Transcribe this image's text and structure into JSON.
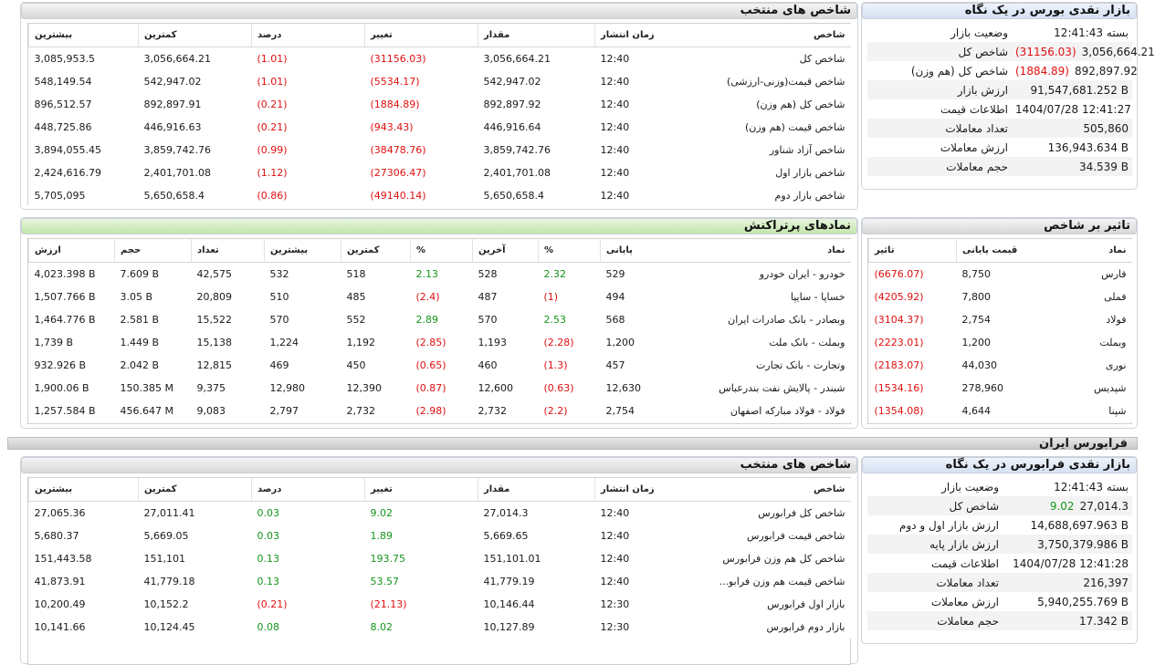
{
  "colors": {
    "negative": "#e01010",
    "positive": "#13961b",
    "header_blue": "#d5e1f2",
    "header_green": "#c4e6ad"
  },
  "bourse_glance": {
    "title": "بازار نقدی بورس در یک نگاه",
    "rows": [
      {
        "key": "وضعیت بازار",
        "value": "بسته 12:41:43"
      },
      {
        "key": "شاخص کل",
        "value": "3,056,664.21",
        "change": "(31156.03)"
      },
      {
        "key": "شاخص کل (هم وزن)",
        "value": "892,897.92",
        "change": "(1884.89)"
      },
      {
        "key": "ارزش بازار",
        "value": "91,547,681.252 B"
      },
      {
        "key": "اطلاعات قیمت",
        "value": "1404/07/28 12:41:27"
      },
      {
        "key": "تعداد معاملات",
        "value": "505,860"
      },
      {
        "key": "ارزش معاملات",
        "value": "136,943.634 B"
      },
      {
        "key": "حجم معاملات",
        "value": "34.539 B"
      }
    ]
  },
  "bourse_indices": {
    "title": "شاخص های منتخب",
    "headers": [
      "شاخص",
      "زمان انتشار",
      "مقدار",
      "تغییر",
      "درصد",
      "کمترین",
      "بیشترین"
    ],
    "rows": [
      [
        "شاخص کل",
        "12:40",
        "3,056,664.21",
        "(31156.03)",
        "(1.01)",
        "3,056,664.21",
        "3,085,953.5"
      ],
      [
        "شاخص قیمت(وزنی-ارزشی)",
        "12:40",
        "542,947.02",
        "(5534.17)",
        "(1.01)",
        "542,947.02",
        "548,149.54"
      ],
      [
        "شاخص کل (هم وزن)",
        "12:40",
        "892,897.92",
        "(1884.89)",
        "(0.21)",
        "892,897.91",
        "896,512.57"
      ],
      [
        "شاخص قیمت (هم وزن)",
        "12:40",
        "446,916.64",
        "(943.43)",
        "(0.21)",
        "446,916.63",
        "448,725.86"
      ],
      [
        "شاخص آزاد شناور",
        "12:40",
        "3,859,742.76",
        "(38478.76)",
        "(0.99)",
        "3,859,742.76",
        "3,894,055.45"
      ],
      [
        "شاخص بازار اول",
        "12:40",
        "2,401,701.08",
        "(27306.47)",
        "(1.12)",
        "2,401,701.08",
        "2,424,616.79"
      ],
      [
        "شاخص بازار دوم",
        "12:40",
        "5,650,658.4",
        "(49140.14)",
        "(0.86)",
        "5,650,658.4",
        "5,705,095"
      ]
    ]
  },
  "index_impact": {
    "title": "تاثیر بر شاخص",
    "headers": [
      "نماد",
      "قیمت پایانی",
      "تاثیر"
    ],
    "rows": [
      [
        "فارس",
        "8,750",
        "(6676.07)"
      ],
      [
        "فملی",
        "7,800",
        "(4205.92)"
      ],
      [
        "فولاد",
        "2,754",
        "(3104.37)"
      ],
      [
        "وبملت",
        "1,200",
        "(2223.01)"
      ],
      [
        "نوری",
        "44,030",
        "(2183.07)"
      ],
      [
        "شپدیس",
        "278,960",
        "(1534.16)"
      ],
      [
        "شپنا",
        "4,644",
        "(1354.08)"
      ]
    ]
  },
  "most_traded": {
    "title": "نمادهای پرتراکنش",
    "headers": [
      "نماد",
      "پایانی",
      "%",
      "آخرین",
      "%",
      "کمترین",
      "بیشترین",
      "تعداد",
      "حجم",
      "ارزش"
    ],
    "rows": [
      [
        "خودرو - ایران خودرو",
        "529",
        "2.32",
        "528",
        "2.13",
        "518",
        "532",
        "42,575",
        "7.609 B",
        "4,023.398 B"
      ],
      [
        "خساپا - سایپا",
        "494",
        "(1)",
        "487",
        "(2.4)",
        "485",
        "510",
        "20,809",
        "3.05 B",
        "1,507.766 B"
      ],
      [
        "وبصادر - بانک صادرات ایران",
        "568",
        "2.53",
        "570",
        "2.89",
        "552",
        "570",
        "15,522",
        "2.581 B",
        "1,464.776 B"
      ],
      [
        "وبملت - بانک ملت",
        "1,200",
        "(2.28)",
        "1,193",
        "(2.85)",
        "1,192",
        "1,224",
        "15,138",
        "1.449 B",
        "1,739 B"
      ],
      [
        "وتجارت - بانک تجارت",
        "457",
        "(1.3)",
        "460",
        "(0.65)",
        "450",
        "469",
        "12,815",
        "2.042 B",
        "932.926 B"
      ],
      [
        "شبندر - پالایش نفت بندرعباس",
        "12,630",
        "(0.63)",
        "12,600",
        "(0.87)",
        "12,390",
        "12,980",
        "9,375",
        "150.385 M",
        "1,900.06 B"
      ],
      [
        "فولاد - فولاد مبارکه اصفهان",
        "2,754",
        "(2.2)",
        "2,732",
        "(2.98)",
        "2,732",
        "2,797",
        "9,083",
        "456.647 M",
        "1,257.584 B"
      ]
    ]
  },
  "farabourse_section": {
    "title": "فرابورس ایران"
  },
  "fara_glance": {
    "title": "بازار نقدی فرابورس در یک نگاه",
    "rows": [
      {
        "key": "وضعیت بازار",
        "value": "بسته 12:41:43"
      },
      {
        "key": "شاخص کل",
        "value": "27,014.3",
        "change": "9.02"
      },
      {
        "key": "ارزش بازار اول و دوم",
        "value": "14,688,697.963 B"
      },
      {
        "key": "ارزش بازار پایه",
        "value": "3,750,379.986 B"
      },
      {
        "key": "اطلاعات قیمت",
        "value": "1404/07/28 12:41:28"
      },
      {
        "key": "تعداد معاملات",
        "value": "216,397"
      },
      {
        "key": "ارزش معاملات",
        "value": "5,940,255.769 B"
      },
      {
        "key": "حجم معاملات",
        "value": "17.342 B"
      }
    ]
  },
  "fara_indices": {
    "title": "شاخص های منتخب",
    "headers": [
      "شاخص",
      "زمان انتشار",
      "مقدار",
      "تغییر",
      "درصد",
      "کمترین",
      "بیشترین"
    ],
    "rows": [
      [
        "شاخص کل فرابورس",
        "12:40",
        "27,014.3",
        "9.02",
        "0.03",
        "27,011.41",
        "27,065.36"
      ],
      [
        "شاخص قیمت فرابورس",
        "12:40",
        "5,669.65",
        "1.89",
        "0.03",
        "5,669.05",
        "5,680.37"
      ],
      [
        "شاخص کل هم وزن فرابورس",
        "12:40",
        "151,101.01",
        "193.75",
        "0.13",
        "151,101",
        "151,443.58"
      ],
      [
        "شاخص قیمت هم وزن فرابو...",
        "12:40",
        "41,779.19",
        "53.57",
        "0.13",
        "41,779.18",
        "41,873.91"
      ],
      [
        "بازار اول فرابورس",
        "12:30",
        "10,146.44",
        "(21.13)",
        "(0.21)",
        "10,152.2",
        "10,200.49"
      ],
      [
        "بازار دوم فرابورس",
        "12:30",
        "10,127.89",
        "8.02",
        "0.08",
        "10,124.45",
        "10,141.66"
      ]
    ]
  }
}
